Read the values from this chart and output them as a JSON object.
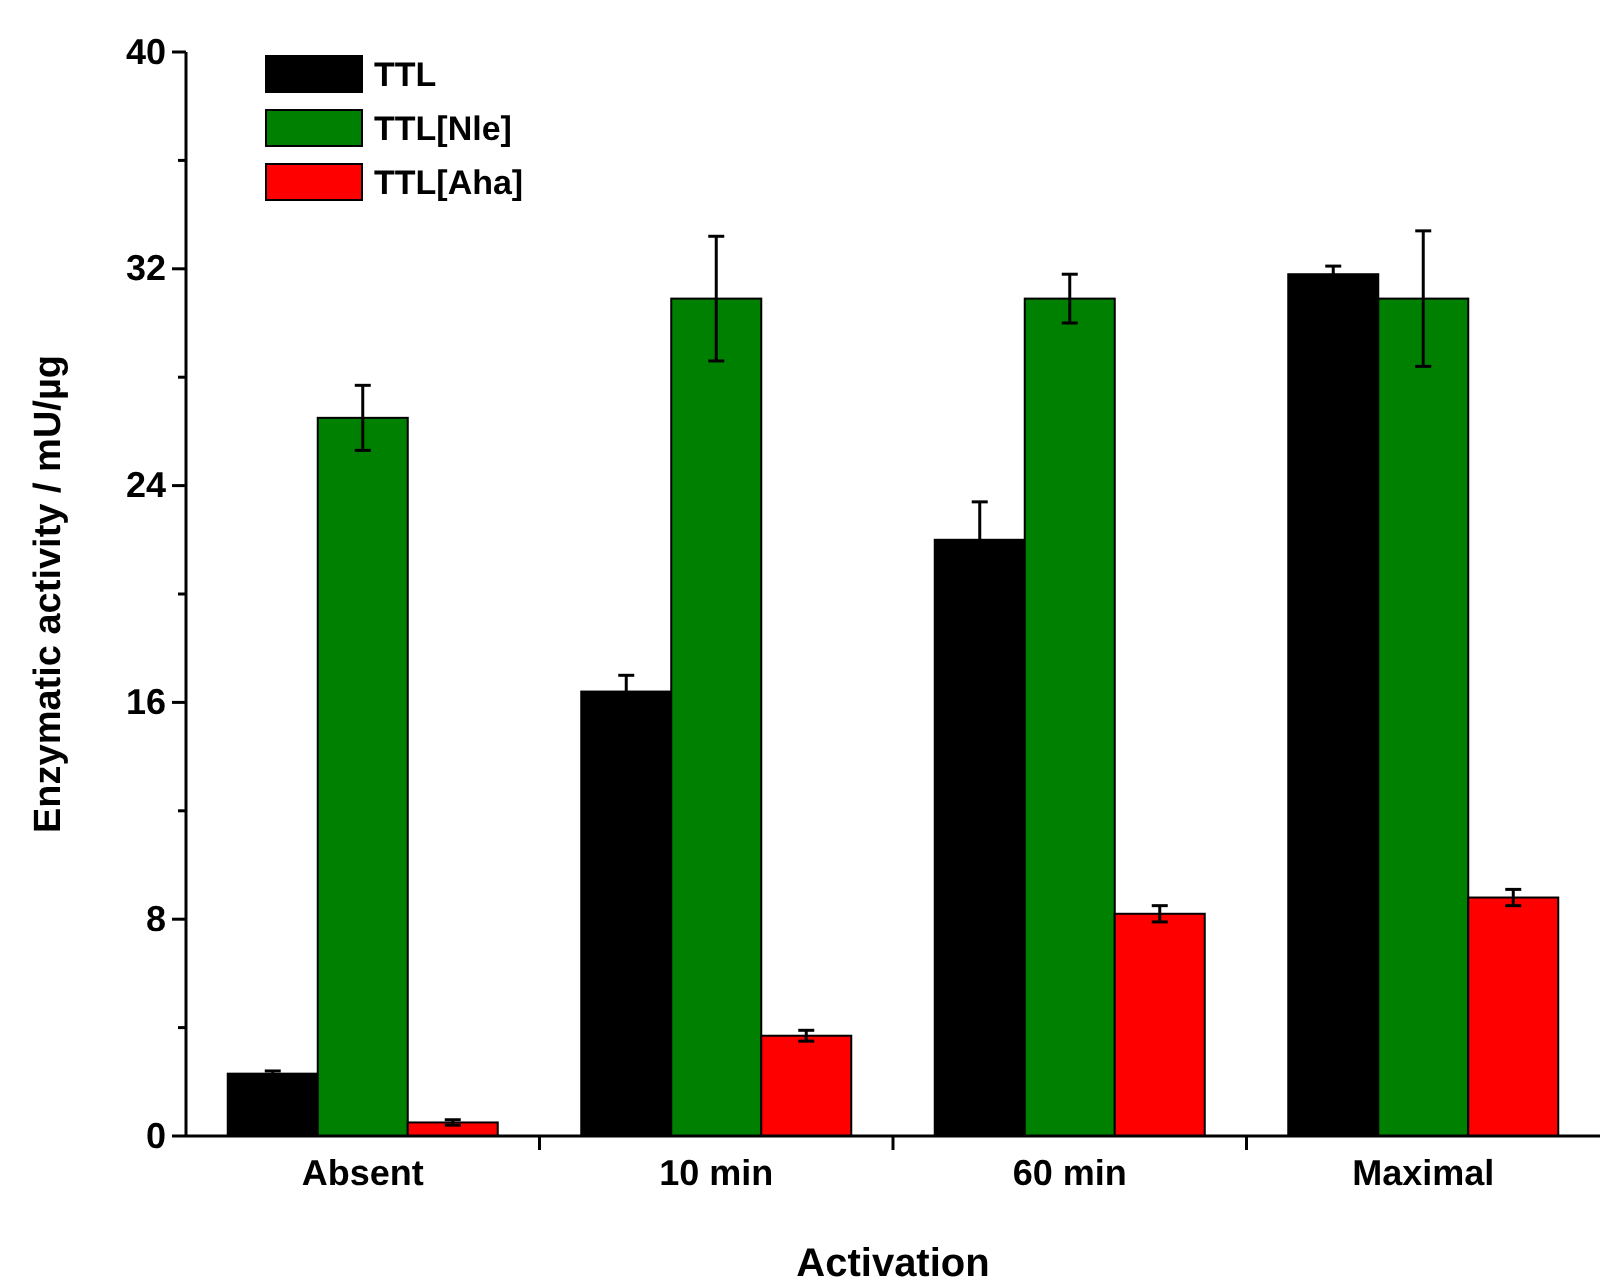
{
  "chart_data": {
    "type": "bar",
    "xlabel": "Activation",
    "ylabel": "Enzymatic activity / mU/µg",
    "categories": [
      "Absent",
      "10 min",
      "60 min",
      "Maximal"
    ],
    "series": [
      {
        "name": "TTL",
        "color": "#000000",
        "values": [
          2.3,
          16.4,
          22.0,
          31.8
        ],
        "errors": [
          0.1,
          0.6,
          1.4,
          0.3
        ]
      },
      {
        "name": "TTL[Nle]",
        "color": "#008000",
        "values": [
          26.5,
          30.9,
          30.9,
          30.9
        ],
        "errors": [
          1.2,
          2.3,
          0.9,
          2.5
        ]
      },
      {
        "name": "TTL[Aha]",
        "color": "#ff0000",
        "values": [
          0.5,
          3.7,
          8.2,
          8.8
        ],
        "errors": [
          0.1,
          0.2,
          0.3,
          0.3
        ]
      }
    ],
    "ylim": [
      0,
      40
    ],
    "yticks": [
      0,
      8,
      16,
      24,
      32,
      40
    ],
    "grid": false,
    "legend": "top left"
  }
}
